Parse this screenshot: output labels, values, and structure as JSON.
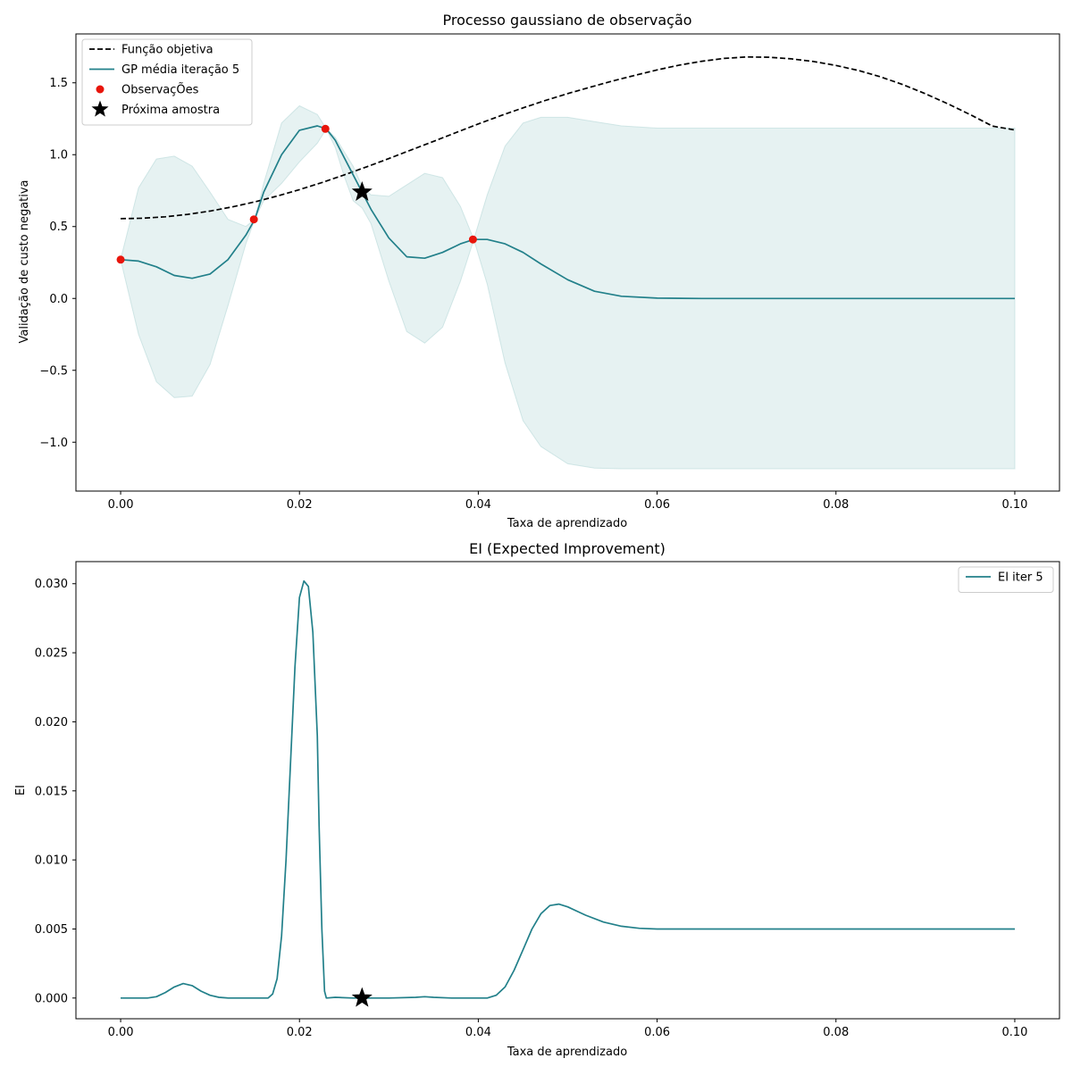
{
  "chart_data": [
    {
      "type": "line",
      "title": "Processo gaussiano de observação",
      "xlabel": "Taxa de aprendizado",
      "ylabel": "Validação de custo negativa",
      "xlim": [
        -0.005,
        0.105
      ],
      "ylim": [
        -1.34,
        1.84
      ],
      "xticks": [
        0.0,
        0.02,
        0.04,
        0.06,
        0.08,
        0.1
      ],
      "xtick_labels": [
        "0.00",
        "0.02",
        "0.04",
        "0.06",
        "0.08",
        "0.10"
      ],
      "yticks": [
        -1.0,
        -0.5,
        0.0,
        0.5,
        1.0,
        1.5
      ],
      "ytick_labels": [
        "−1.0",
        "−0.5",
        "0.0",
        "0.5",
        "1.0",
        "1.5"
      ],
      "legend_position": "top-left",
      "legend": [
        "Função objetiva",
        "GP média iteração 5",
        "ObservaçÕes",
        "Próxima amostra"
      ],
      "series": [
        {
          "name": "Função objetiva",
          "style": "dashed",
          "color": "#000000",
          "x": [
            0.0,
            0.0025,
            0.005,
            0.0075,
            0.01,
            0.0125,
            0.015,
            0.0175,
            0.02,
            0.0225,
            0.025,
            0.0275,
            0.03,
            0.0325,
            0.035,
            0.0375,
            0.04,
            0.0425,
            0.045,
            0.0475,
            0.05,
            0.0525,
            0.055,
            0.0575,
            0.06,
            0.0625,
            0.065,
            0.0675,
            0.07,
            0.0725,
            0.075,
            0.0775,
            0.08,
            0.0825,
            0.085,
            0.0875,
            0.09,
            0.0925,
            0.095,
            0.0975,
            0.1
          ],
          "y": [
            0.555,
            0.558,
            0.568,
            0.585,
            0.608,
            0.637,
            0.672,
            0.712,
            0.757,
            0.806,
            0.859,
            0.915,
            0.973,
            1.033,
            1.093,
            1.154,
            1.214,
            1.271,
            1.326,
            1.377,
            1.425,
            1.469,
            1.512,
            1.552,
            1.59,
            1.623,
            1.65,
            1.67,
            1.68,
            1.678,
            1.667,
            1.648,
            1.621,
            1.586,
            1.541,
            1.487,
            1.424,
            1.354,
            1.279,
            1.199,
            1.172
          ]
        },
        {
          "name": "GP média iteração 5",
          "style": "solid",
          "color": "#22808a",
          "x": [
            0.0,
            0.002,
            0.004,
            0.006,
            0.008,
            0.01,
            0.012,
            0.014,
            0.015,
            0.016,
            0.018,
            0.02,
            0.022,
            0.023,
            0.024,
            0.025,
            0.026,
            0.027,
            0.028,
            0.03,
            0.032,
            0.034,
            0.036,
            0.038,
            0.0395,
            0.041,
            0.043,
            0.045,
            0.047,
            0.05,
            0.053,
            0.056,
            0.06,
            0.065,
            0.07,
            0.08,
            0.09,
            0.1
          ],
          "y": [
            0.27,
            0.26,
            0.22,
            0.16,
            0.14,
            0.17,
            0.27,
            0.44,
            0.55,
            0.74,
            1.0,
            1.17,
            1.2,
            1.18,
            1.1,
            0.98,
            0.86,
            0.74,
            0.62,
            0.42,
            0.29,
            0.28,
            0.32,
            0.38,
            0.41,
            0.41,
            0.38,
            0.32,
            0.24,
            0.13,
            0.05,
            0.015,
            0.002,
            0.0,
            0.0,
            0.0,
            0.0,
            0.0
          ]
        }
      ],
      "confidence_band": {
        "color": "#b7d9d9",
        "x": [
          0.0,
          0.002,
          0.004,
          0.006,
          0.008,
          0.01,
          0.012,
          0.014,
          0.015,
          0.016,
          0.018,
          0.02,
          0.022,
          0.023,
          0.024,
          0.025,
          0.026,
          0.027,
          0.028,
          0.03,
          0.032,
          0.034,
          0.036,
          0.038,
          0.0395,
          0.041,
          0.043,
          0.045,
          0.047,
          0.05,
          0.053,
          0.056,
          0.06,
          0.065,
          0.07,
          0.08,
          0.09,
          0.1
        ],
        "lower": [
          0.27,
          -0.25,
          -0.58,
          -0.69,
          -0.68,
          -0.46,
          -0.05,
          0.38,
          0.55,
          0.68,
          0.8,
          0.95,
          1.08,
          1.18,
          1.05,
          0.85,
          0.68,
          0.63,
          0.52,
          0.12,
          -0.23,
          -0.31,
          -0.2,
          0.12,
          0.41,
          0.1,
          -0.45,
          -0.85,
          -1.03,
          -1.15,
          -1.18,
          -1.185,
          -1.185,
          -1.185,
          -1.185,
          -1.185,
          -1.185,
          -1.185
        ],
        "upper": [
          0.27,
          0.77,
          0.97,
          0.99,
          0.92,
          0.74,
          0.55,
          0.5,
          0.55,
          0.8,
          1.22,
          1.34,
          1.28,
          1.18,
          1.12,
          1.02,
          0.92,
          0.78,
          0.72,
          0.71,
          0.79,
          0.87,
          0.84,
          0.64,
          0.41,
          0.72,
          1.06,
          1.22,
          1.26,
          1.26,
          1.23,
          1.2,
          1.185,
          1.185,
          1.185,
          1.185,
          1.185,
          1.185
        ]
      },
      "observations": {
        "name": "ObservaçÕes",
        "color": "#e8150b",
        "x": [
          0.0,
          0.0149,
          0.0229,
          0.0394
        ],
        "y": [
          0.27,
          0.55,
          1.18,
          0.41
        ]
      },
      "next_sample": {
        "name": "Próxima amostra",
        "color": "#000000",
        "x": 0.027,
        "y": 0.74
      }
    },
    {
      "type": "line",
      "title": "EI (Expected Improvement)",
      "xlabel": "Taxa de aprendizado",
      "ylabel": "EI",
      "xlim": [
        -0.005,
        0.105
      ],
      "ylim": [
        -0.0015,
        0.0316
      ],
      "xticks": [
        0.0,
        0.02,
        0.04,
        0.06,
        0.08,
        0.1
      ],
      "xtick_labels": [
        "0.00",
        "0.02",
        "0.04",
        "0.06",
        "0.08",
        "0.10"
      ],
      "yticks": [
        0.0,
        0.005,
        0.01,
        0.015,
        0.02,
        0.025,
        0.03
      ],
      "ytick_labels": [
        "0.000",
        "0.005",
        "0.010",
        "0.015",
        "0.020",
        "0.025",
        "0.030"
      ],
      "legend_position": "top-right",
      "legend": [
        "EI iter 5"
      ],
      "series": [
        {
          "name": "EI iter 5",
          "style": "solid",
          "color": "#22808a",
          "x": [
            0.0,
            0.003,
            0.004,
            0.005,
            0.006,
            0.007,
            0.008,
            0.009,
            0.01,
            0.011,
            0.012,
            0.0165,
            0.017,
            0.0175,
            0.018,
            0.0185,
            0.019,
            0.0195,
            0.02,
            0.0205,
            0.021,
            0.0215,
            0.022,
            0.0222,
            0.0225,
            0.0228,
            0.023,
            0.024,
            0.026,
            0.027,
            0.03,
            0.033,
            0.034,
            0.035,
            0.037,
            0.041,
            0.042,
            0.043,
            0.044,
            0.045,
            0.046,
            0.047,
            0.048,
            0.049,
            0.05,
            0.052,
            0.054,
            0.056,
            0.058,
            0.06,
            0.07,
            0.08,
            0.09,
            0.1
          ],
          "y": [
            0.0,
            0.0,
            0.0001,
            0.0004,
            0.0008,
            0.00105,
            0.0009,
            0.0005,
            0.0002,
            5e-05,
            0.0,
            0.0,
            0.0003,
            0.0014,
            0.0045,
            0.01,
            0.017,
            0.024,
            0.029,
            0.0302,
            0.0298,
            0.0265,
            0.019,
            0.0125,
            0.005,
            0.0005,
            0.0,
            5e-05,
            0.0,
            0.0,
            0.0,
            5e-05,
            0.0001,
            5e-05,
            0.0,
            0.0,
            0.0002,
            0.0008,
            0.002,
            0.0035,
            0.005,
            0.0061,
            0.0067,
            0.0068,
            0.0066,
            0.006,
            0.0055,
            0.0052,
            0.00505,
            0.005,
            0.005,
            0.005,
            0.005,
            0.005
          ]
        }
      ],
      "next_sample": {
        "color": "#000000",
        "x": 0.027,
        "y": 0.0
      }
    }
  ]
}
